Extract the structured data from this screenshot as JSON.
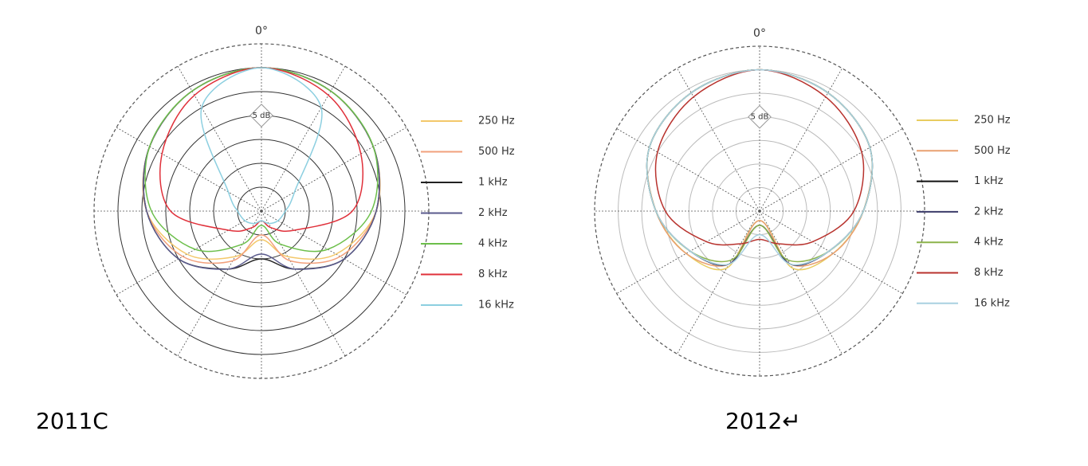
{
  "chart_data": [
    {
      "type": "polar",
      "title": "2011C",
      "angle_label": "0°",
      "annotation": "5 dB",
      "theta": [
        0,
        30,
        60,
        90,
        120,
        150,
        180,
        210,
        240,
        270,
        300,
        330
      ],
      "rlim": [
        -30,
        5
      ],
      "rticks": [
        -25,
        -20,
        -15,
        -10,
        -5,
        0
      ],
      "grid_color": "#333",
      "series": [
        {
          "name": "250 Hz",
          "color": "#f3c86a",
          "values": [
            0,
            -1,
            -3,
            -6,
            -12,
            -19,
            -24,
            -19,
            -12,
            -6,
            -3,
            -1
          ]
        },
        {
          "name": "500 Hz",
          "color": "#f2a07c",
          "values": [
            0,
            -1,
            -3,
            -6,
            -11,
            -18,
            -25,
            -18,
            -11,
            -6,
            -3,
            -1
          ]
        },
        {
          "name": "1 kHz",
          "color": "#222222",
          "values": [
            0,
            -1,
            -3,
            -6,
            -10,
            -16,
            -20,
            -16,
            -10,
            -6,
            -3,
            -1
          ]
        },
        {
          "name": "2 kHz",
          "color": "#5a5a8c",
          "values": [
            0,
            -1,
            -3,
            -6,
            -10,
            -16,
            -21,
            -16,
            -10,
            -6,
            -3,
            -1
          ]
        },
        {
          "name": "4 kHz",
          "color": "#6cbf4a",
          "values": [
            0,
            -1,
            -3,
            -7,
            -14,
            -22,
            -27,
            -22,
            -14,
            -7,
            -3,
            -1
          ]
        },
        {
          "name": "8 kHz",
          "color": "#e0303a",
          "values": [
            0,
            -2,
            -6,
            -11,
            -22,
            -26,
            -28,
            -26,
            -22,
            -11,
            -6,
            -2
          ]
        },
        {
          "name": "16 kHz",
          "color": "#8ccfe0",
          "values": [
            0,
            -5,
            -22,
            -25,
            -26,
            -27,
            -28,
            -27,
            -26,
            -25,
            -22,
            -5
          ]
        }
      ]
    },
    {
      "type": "polar",
      "title": "2012↵",
      "angle_label": "0°",
      "annotation": "5 dB",
      "theta": [
        0,
        30,
        60,
        90,
        120,
        150,
        180,
        210,
        240,
        270,
        300,
        330
      ],
      "rlim": [
        -30,
        5
      ],
      "rticks": [
        -25,
        -20,
        -15,
        -10,
        -5,
        0
      ],
      "grid_color": "#bbbbbb",
      "series": [
        {
          "name": "250 Hz",
          "color": "#e8cc60",
          "values": [
            0,
            -1,
            -3,
            -8,
            -12,
            -16,
            -28,
            -16,
            -12,
            -8,
            -3,
            -1
          ]
        },
        {
          "name": "500 Hz",
          "color": "#e8a070",
          "values": [
            0,
            -1,
            -3,
            -8,
            -12,
            -17,
            -28,
            -17,
            -12,
            -8,
            -3,
            -1
          ]
        },
        {
          "name": "1 kHz",
          "color": "#111111",
          "values": [
            0,
            -1,
            -3,
            -8,
            -13,
            -17,
            -27,
            -17,
            -13,
            -8,
            -3,
            -1
          ]
        },
        {
          "name": "2 kHz",
          "color": "#3c3c6a",
          "values": [
            0,
            -1,
            -3,
            -8,
            -13,
            -17,
            -27,
            -17,
            -13,
            -8,
            -3,
            -1
          ]
        },
        {
          "name": "4 kHz",
          "color": "#8cb34a",
          "values": [
            0,
            -1,
            -3,
            -8,
            -13,
            -18,
            -27,
            -18,
            -13,
            -8,
            -3,
            -1
          ]
        },
        {
          "name": "8 kHz",
          "color": "#b8332e",
          "values": [
            0,
            -2,
            -5,
            -10,
            -17,
            -22,
            -24,
            -22,
            -17,
            -10,
            -5,
            -2
          ]
        },
        {
          "name": "16 kHz",
          "color": "#a8d0e0",
          "values": [
            0,
            -1,
            -3,
            -8,
            -13,
            -17,
            -25,
            -17,
            -13,
            -8,
            -3,
            -1
          ]
        }
      ]
    }
  ]
}
